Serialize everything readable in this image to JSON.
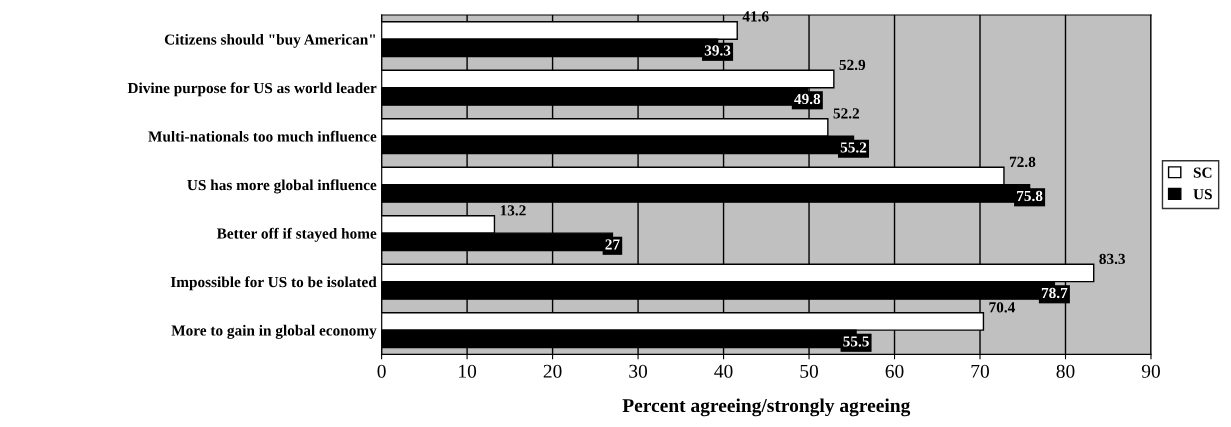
{
  "chart_data": {
    "type": "bar",
    "orientation": "horizontal",
    "categories": [
      "Citizens should \"buy American\"",
      "Divine purpose for US as world leader",
      "Multi-nationals too much influence",
      "US has more global influence",
      "Better off if stayed home",
      "Impossible for US to be isolated",
      "More to gain in global economy"
    ],
    "series": [
      {
        "name": "SC",
        "color": "#ffffff",
        "values": [
          41.6,
          52.9,
          52.2,
          72.8,
          13.2,
          83.3,
          70.4
        ]
      },
      {
        "name": "US",
        "color": "#000000",
        "values": [
          39.3,
          49.8,
          55.2,
          75.8,
          27,
          78.7,
          55.5
        ]
      }
    ],
    "xlabel": "Percent agreeing/strongly agreeing",
    "xlim": [
      0,
      90
    ],
    "xticks": [
      0,
      10,
      20,
      30,
      40,
      50,
      60,
      70,
      80,
      90
    ],
    "grid": "x",
    "legend": "right",
    "data_labels": true
  }
}
